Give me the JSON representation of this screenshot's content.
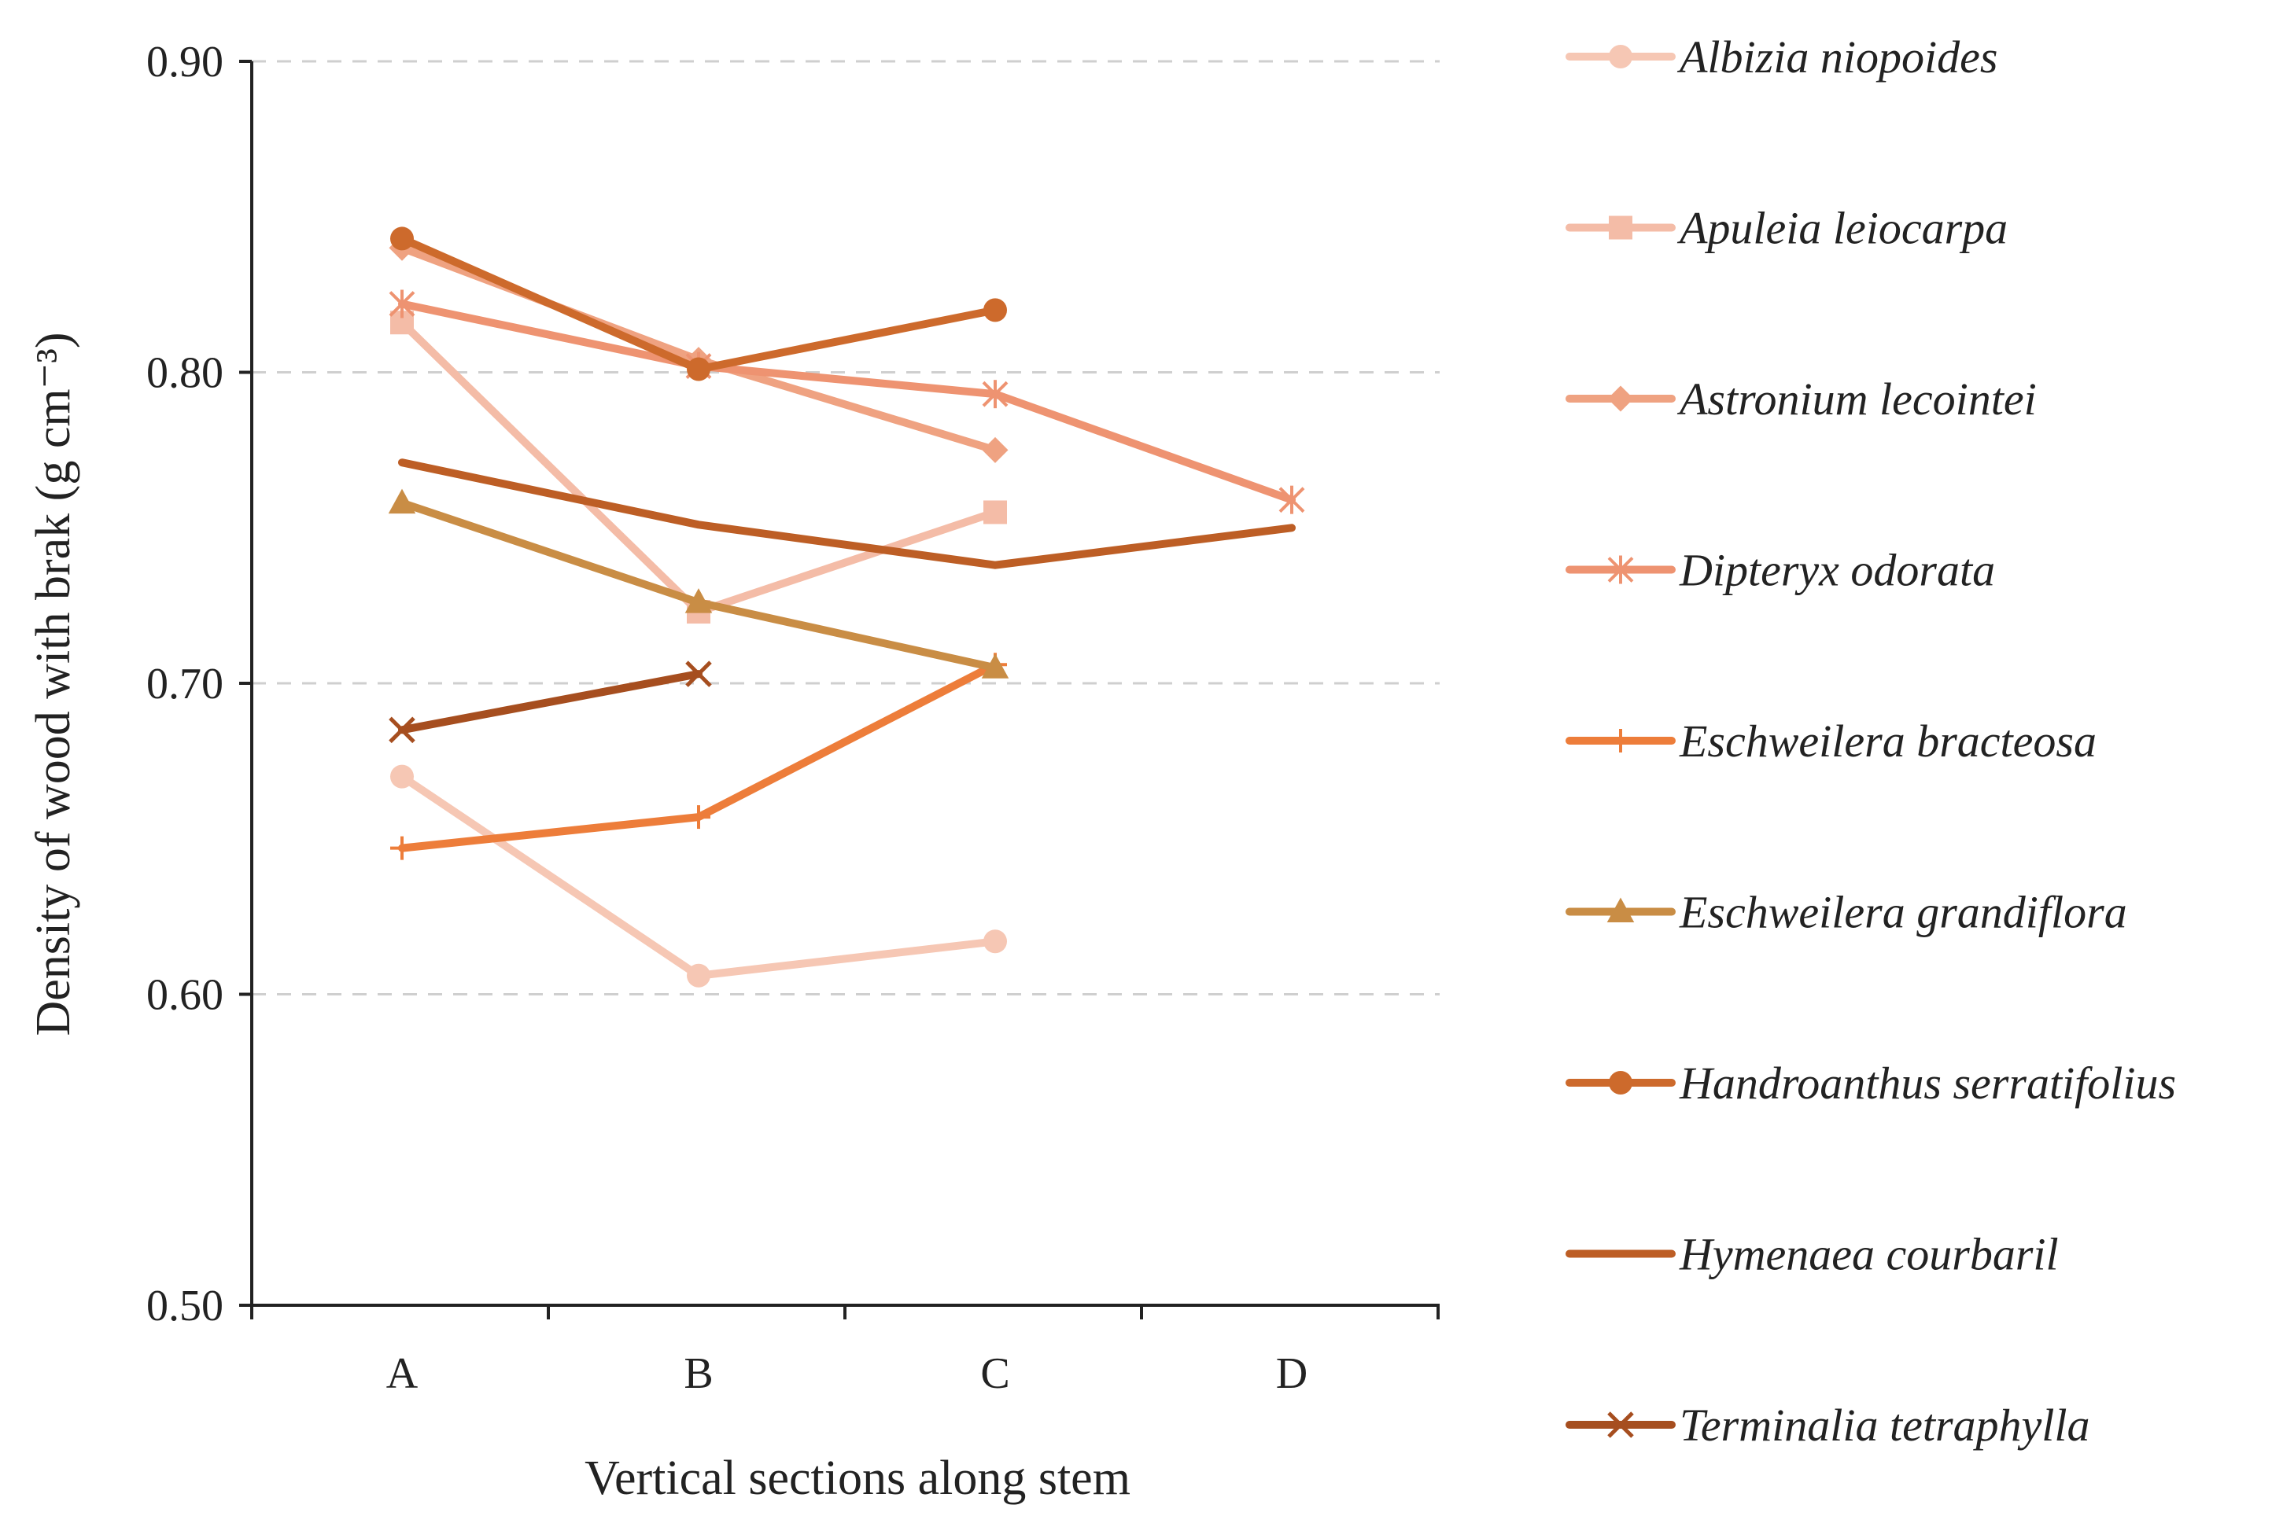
{
  "chart_data": {
    "type": "line",
    "title": "",
    "xlabel": "Vertical sections along stem",
    "ylabel": "Density of wood with brak (g cm⁻³)",
    "categories": [
      "A",
      "B",
      "C",
      "D"
    ],
    "ylim": [
      0.5,
      0.9
    ],
    "yticks": [
      "0.50",
      "0.60",
      "0.70",
      "0.80",
      "0.90"
    ],
    "gridlines": "horizontal dashed",
    "legend_position": "right",
    "series": [
      {
        "name": "Albizia niopoides",
        "values": [
          0.67,
          0.606,
          0.617,
          null
        ],
        "color": "#f6c7b4",
        "marker": "circle"
      },
      {
        "name": "Apuleia leiocarpa",
        "values": [
          0.816,
          0.723,
          0.755,
          null
        ],
        "color": "#f4bca7",
        "marker": "square"
      },
      {
        "name": "Astronium lecointei",
        "values": [
          0.84,
          0.804,
          0.775,
          null
        ],
        "color": "#efa281",
        "marker": "diamond"
      },
      {
        "name": "Dipteryx odorata",
        "values": [
          0.822,
          0.802,
          0.793,
          0.759
        ],
        "color": "#ee9371",
        "marker": "asterisk"
      },
      {
        "name": "Eschweilera bracteosa",
        "values": [
          0.647,
          0.657,
          0.706,
          null
        ],
        "color": "#ed7d3a",
        "marker": "plus"
      },
      {
        "name": "Eschweilera grandiflora",
        "values": [
          0.758,
          0.726,
          0.705,
          null
        ],
        "color": "#c98d45",
        "marker": "triangle"
      },
      {
        "name": "Handroanthus serratifolius",
        "values": [
          0.843,
          0.801,
          0.82,
          null
        ],
        "color": "#cd6a2c",
        "marker": "circle"
      },
      {
        "name": "Hymenaea courbaril",
        "values": [
          0.771,
          0.751,
          0.738,
          0.75
        ],
        "color": "#bd5e25",
        "marker": "none"
      },
      {
        "name": "Terminalia tetraphylla",
        "values": [
          0.685,
          0.703,
          null,
          null
        ],
        "color": "#a64e1f",
        "marker": "x"
      }
    ]
  }
}
